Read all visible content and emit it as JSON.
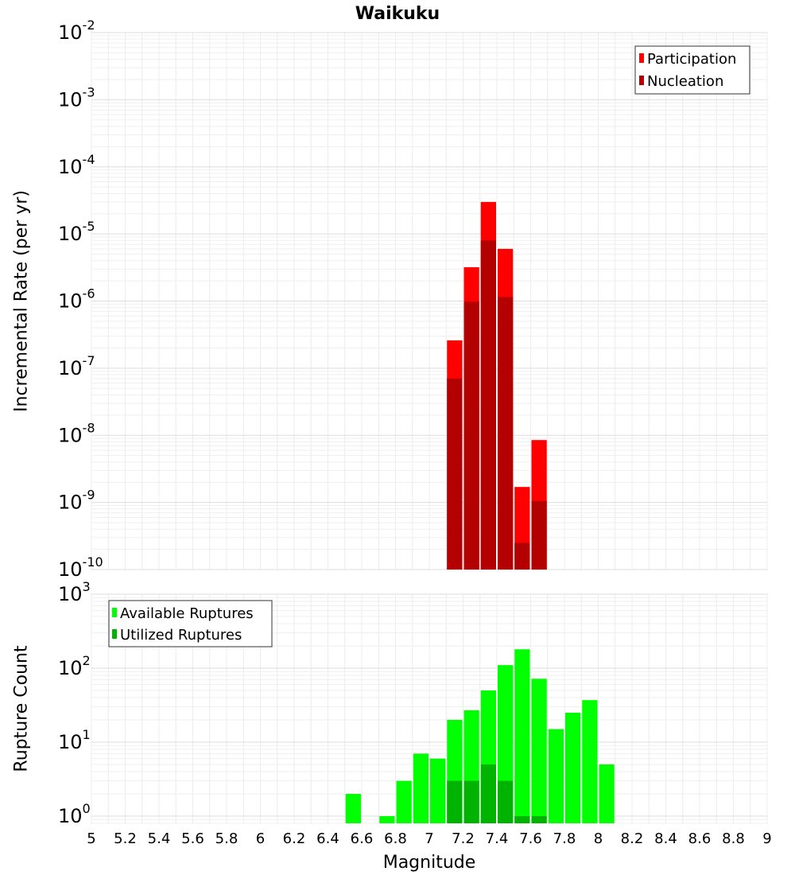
{
  "chart_data": [
    {
      "type": "bar",
      "title": "Waikuku",
      "xlabel": "",
      "ylabel": "Incremental Rate (per yr)",
      "yscale": "log",
      "ylim": [
        1e-10,
        0.01
      ],
      "xlim": [
        5,
        9
      ],
      "bin_width": 0.1,
      "grid": true,
      "legend_position": "top-right",
      "y_tick_bases": [
        "10",
        "10",
        "10",
        "10",
        "10",
        "10",
        "10",
        "10",
        "10"
      ],
      "y_tick_exponents": [
        "-10",
        "-9",
        "-8",
        "-7",
        "-6",
        "-5",
        "-4",
        "-3",
        "-2"
      ],
      "series": [
        {
          "name": "Participation",
          "color": "#ff0000",
          "x": [
            7.15,
            7.25,
            7.35,
            7.45,
            7.55,
            7.65
          ],
          "values": [
            2.6e-07,
            3.2e-06,
            3e-05,
            6e-06,
            1.7e-09,
            8.5e-09
          ]
        },
        {
          "name": "Nucleation",
          "color": "#b30000",
          "x": [
            7.15,
            7.25,
            7.35,
            7.45,
            7.55,
            7.65
          ],
          "values": [
            7e-08,
            9.8e-07,
            8e-06,
            1.15e-06,
            2.5e-10,
            1.05e-09
          ]
        }
      ]
    },
    {
      "type": "bar",
      "title": "",
      "xlabel": "Magnitude",
      "ylabel": "Rupture Count",
      "yscale": "log",
      "ylim": [
        0.8,
        1000
      ],
      "xlim": [
        5,
        9
      ],
      "bin_width": 0.1,
      "grid": true,
      "legend_position": "top-left",
      "x_ticks": [
        "5",
        "5.2",
        "5.4",
        "5.6",
        "5.8",
        "6",
        "6.2",
        "6.4",
        "6.6",
        "6.8",
        "7",
        "7.2",
        "7.4",
        "7.6",
        "7.8",
        "8",
        "8.2",
        "8.4",
        "8.6",
        "8.8",
        "9"
      ],
      "y_tick_bases": [
        "10",
        "10",
        "10",
        "10"
      ],
      "y_tick_exponents": [
        "0",
        "1",
        "2",
        "3"
      ],
      "series": [
        {
          "name": "Available Ruptures",
          "color": "#00ff00",
          "x": [
            6.55,
            6.75,
            6.85,
            6.95,
            7.05,
            7.15,
            7.25,
            7.35,
            7.45,
            7.55,
            7.65,
            7.75,
            7.85,
            7.95,
            8.05
          ],
          "values": [
            2,
            1,
            3,
            7,
            6,
            20,
            27,
            50,
            110,
            180,
            72,
            15,
            25,
            37,
            5
          ]
        },
        {
          "name": "Utilized Ruptures",
          "color": "#00b300",
          "x": [
            7.15,
            7.25,
            7.35,
            7.45,
            7.55,
            7.65
          ],
          "values": [
            3,
            3,
            5,
            3,
            1,
            1
          ]
        }
      ]
    }
  ]
}
